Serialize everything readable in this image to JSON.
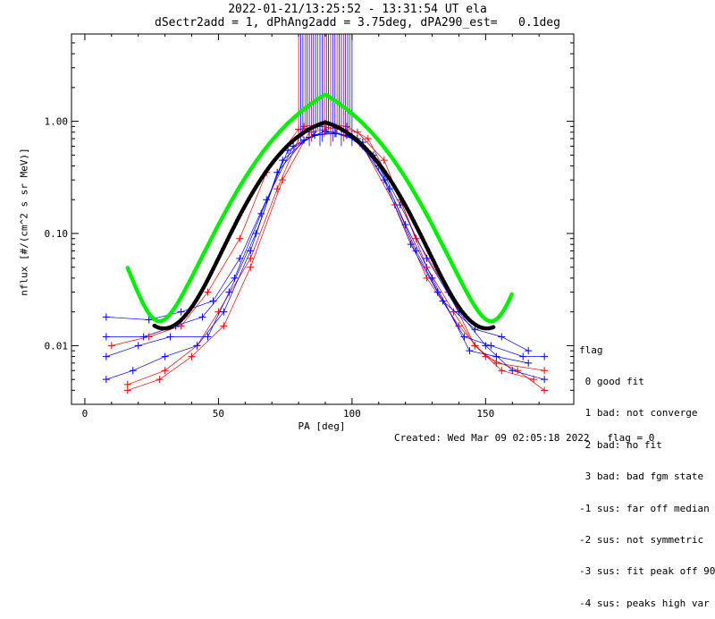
{
  "header": {
    "title_line1": "2022-01-21/13:25:52 - 13:31:54 UT ela",
    "title_line2": "dSectr2add = 1, dPhAng2add = 3.75deg, dPA290_est=   0.1deg"
  },
  "footer": {
    "created": "Created: Wed Mar 09 02:05:18 2022",
    "flag": "flag = 0"
  },
  "legend": {
    "title": "flag",
    "items": [
      " 0 good fit",
      " 1 bad: not converge",
      " 2 bad: no fit",
      " 3 bad: bad fgm state",
      "-1 sus: far off median",
      "-2 sus: not symmetric",
      "-3 sus: fit peak off 90",
      "-4 sus: peaks high var"
    ]
  },
  "colors": {
    "red": "#ff0000",
    "blue": "#0000ff",
    "black": "#000000",
    "green": "#00ee00"
  },
  "chart_data": {
    "type": "line",
    "title": "2022-01-21/13:25:52 - 13:31:54 UT ela",
    "xlabel": "PA [deg]",
    "ylabel": "nflux [#/(cm^2 s sr MeV)]",
    "xlim": [
      -5,
      183
    ],
    "ylim": [
      0.003,
      6
    ],
    "yscale": "log",
    "xticks": [
      0,
      50,
      100,
      150
    ],
    "xtick_labels": [
      "0",
      "50",
      "100",
      "150"
    ],
    "yticks": [
      0.01,
      0.1,
      1
    ],
    "ytick_labels": [
      "0.01",
      "0.10",
      "1.00"
    ],
    "series": [
      {
        "color": "red",
        "x": [
          16,
          30,
          42,
          50,
          62,
          72,
          82,
          90,
          98,
          106,
          118,
          128,
          138,
          146,
          154,
          172
        ],
        "y": [
          0.0045,
          0.006,
          0.01,
          0.02,
          0.06,
          0.25,
          0.9,
          0.95,
          0.9,
          0.7,
          0.2,
          0.05,
          0.02,
          0.01,
          0.007,
          0.006
        ]
      },
      {
        "color": "red",
        "x": [
          10,
          24,
          36,
          46,
          58,
          68,
          80,
          88,
          96,
          104,
          116,
          128,
          140,
          150,
          162,
          172
        ],
        "y": [
          0.01,
          0.012,
          0.015,
          0.03,
          0.09,
          0.35,
          0.85,
          0.9,
          0.85,
          0.6,
          0.18,
          0.04,
          0.015,
          0.008,
          0.006,
          0.004
        ]
      },
      {
        "color": "red",
        "x": [
          16,
          28,
          40,
          52,
          62,
          74,
          84,
          94,
          102,
          112,
          124,
          136,
          146,
          156,
          168
        ],
        "y": [
          0.004,
          0.005,
          0.008,
          0.015,
          0.05,
          0.3,
          0.8,
          0.88,
          0.8,
          0.45,
          0.09,
          0.03,
          0.01,
          0.006,
          0.005
        ]
      },
      {
        "color": "blue",
        "x": [
          8,
          22,
          34,
          44,
          56,
          66,
          76,
          86,
          94,
          102,
          112,
          122,
          132,
          142,
          152,
          164,
          172
        ],
        "y": [
          0.012,
          0.012,
          0.015,
          0.018,
          0.04,
          0.15,
          0.55,
          0.75,
          0.78,
          0.7,
          0.3,
          0.08,
          0.03,
          0.012,
          0.01,
          0.008,
          0.008
        ]
      },
      {
        "color": "blue",
        "x": [
          8,
          20,
          32,
          46,
          54,
          64,
          74,
          84,
          92,
          100,
          110,
          120,
          130,
          144,
          154,
          166
        ],
        "y": [
          0.008,
          0.01,
          0.012,
          0.012,
          0.03,
          0.1,
          0.45,
          0.72,
          0.8,
          0.72,
          0.4,
          0.12,
          0.04,
          0.009,
          0.008,
          0.007
        ]
      },
      {
        "color": "blue",
        "x": [
          8,
          18,
          30,
          42,
          52,
          62,
          72,
          82,
          90,
          98,
          108,
          118,
          128,
          140,
          150,
          160,
          172
        ],
        "y": [
          0.005,
          0.006,
          0.008,
          0.01,
          0.02,
          0.07,
          0.35,
          0.68,
          0.82,
          0.75,
          0.5,
          0.18,
          0.06,
          0.02,
          0.01,
          0.006,
          0.005
        ]
      },
      {
        "color": "blue",
        "x": [
          8,
          24,
          36,
          48,
          58,
          68,
          78,
          86,
          94,
          104,
          114,
          124,
          134,
          146,
          156,
          166
        ],
        "y": [
          0.018,
          0.017,
          0.02,
          0.025,
          0.06,
          0.2,
          0.6,
          0.76,
          0.78,
          0.65,
          0.25,
          0.07,
          0.025,
          0.014,
          0.012,
          0.009
        ]
      }
    ]
  }
}
